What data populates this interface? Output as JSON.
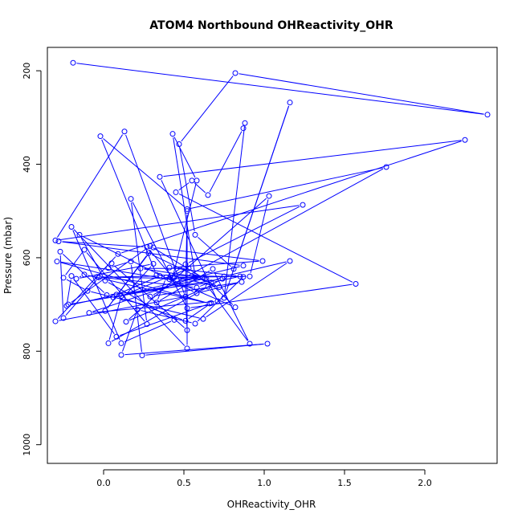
{
  "chart_data": {
    "type": "line",
    "title": "ATOM4 Northbound OHReactivity_OHR",
    "xlabel": "OHReactivity_OHR",
    "ylabel": "Pressure (mbar)",
    "xlim": [
      -0.35,
      2.45
    ],
    "ylim": [
      1040,
      150
    ],
    "y_reversed": true,
    "x_ticks": [
      "0.0",
      "0.5",
      "1.0",
      "1.5",
      "2.0"
    ],
    "y_ticks": [
      "200",
      "400",
      "600",
      "800",
      "1000"
    ],
    "grid": false,
    "color": "#0000ff",
    "series": [
      {
        "name": "OHReactivity_OHR",
        "x": [
          -0.19,
          2.39,
          0.82,
          0.47,
          0.57,
          0.81,
          1.16,
          0.75,
          0.88,
          0.87,
          0.65,
          0.55,
          0.45,
          1.57,
          0.52,
          0.17,
          0.27,
          -0.12,
          -0.25,
          -0.1,
          0.62,
          1.16,
          0.75,
          0.58,
          -0.04,
          0.64,
          0.82,
          0.39,
          0.33,
          0.68,
          0.91,
          0.65,
          0.14,
          1.03,
          0.91,
          0.44,
          0.62,
          0.23,
          0.53,
          0.11,
          0.03,
          0.74,
          -0.22,
          0.29,
          0.63,
          0.06,
          0.87,
          -0.28,
          0.27,
          0.43,
          0.58,
          0.43,
          0.57,
          0.57,
          -0.09,
          0.71,
          0.35,
          2.25,
          0.09,
          -0.3,
          0.51,
          0.52,
          0.05,
          0.03,
          0.17,
          0.24,
          1.02,
          0.11,
          0.21,
          0.57,
          0.87,
          0.33,
          -0.02,
          0.52,
          1.76,
          0.29,
          0.86,
          0.58,
          -0.15,
          0.01,
          0.44,
          0.11,
          -0.2,
          0.52,
          0.52,
          0.51,
          0.13,
          -0.3,
          1.24,
          0.51,
          0.42,
          0.72,
          0.28,
          0.01,
          0.31,
          0.99,
          0.41,
          0.85,
          0.67,
          0.02,
          -0.27,
          -0.25,
          -0.03,
          0.35,
          0.08,
          -0.23,
          -0.2,
          0.08,
          0.67,
          0.51,
          0.12,
          0.31,
          -0.17,
          -0.12,
          0.66,
          -0.29,
          0.41
        ],
        "y": [
          183,
          294,
          205,
          357,
          551,
          624,
          268,
          686,
          312,
          323,
          466,
          435,
          460,
          656,
          708,
          474,
          742,
          583,
          643,
          671,
          731,
          607,
          640,
          664,
          641,
          646,
          706,
          642,
          696,
          624,
          784,
          662,
          737,
          468,
          640,
          642,
          643,
          623,
          623,
          682,
          783,
          645,
          700,
          575,
          645,
          685,
          617,
          565,
          577,
          642,
          435,
          335,
          639,
          642,
          718,
          693,
          427,
          348,
          592,
          736,
          683,
          755,
          612,
          622,
          608,
          809,
          784,
          808,
          711,
          741,
          641,
          637,
          340,
          496,
          406,
          683,
          652,
          676,
          551,
          649,
          733,
          783,
          534,
          794,
          500,
          684,
          330,
          563,
          487,
          614,
          638,
          663,
          590,
          714,
          578,
          607,
          621,
          640,
          653,
          680,
          587,
          729,
          642,
          639,
          679,
          703,
          639,
          769,
          697,
          735,
          686,
          613,
          645,
          636,
          698,
          608,
          646
        ]
      }
    ]
  }
}
